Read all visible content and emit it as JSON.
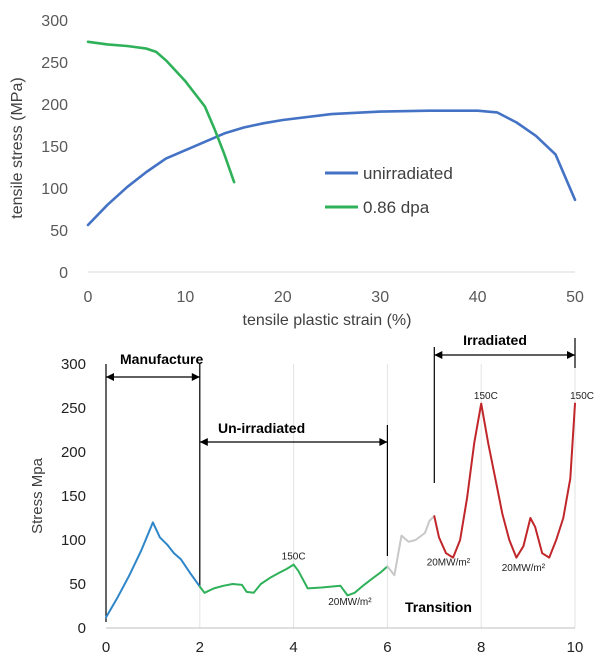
{
  "chart_data": [
    {
      "type": "line",
      "xlabel": "tensile plastic strain (%)",
      "ylabel": "tensile stress (MPa)",
      "xlim": [
        0,
        50
      ],
      "ylim": [
        0,
        300
      ],
      "x_ticks": [
        0,
        10,
        20,
        30,
        40,
        50
      ],
      "y_ticks": [
        0,
        50,
        100,
        150,
        200,
        250,
        300
      ],
      "grid": false,
      "legend_position": "center-right",
      "series": [
        {
          "name": "unirradiated",
          "color": "#4472c4",
          "points": [
            [
              0,
              56
            ],
            [
              2,
              80
            ],
            [
              4,
              101
            ],
            [
              6,
              119
            ],
            [
              8,
              135
            ],
            [
              10,
              145
            ],
            [
              12,
              155
            ],
            [
              14,
              165
            ],
            [
              16,
              172
            ],
            [
              18,
              177
            ],
            [
              20,
              181
            ],
            [
              25,
              188
            ],
            [
              30,
              191
            ],
            [
              35,
              192
            ],
            [
              40,
              192
            ],
            [
              42,
              190
            ],
            [
              44,
              178
            ],
            [
              46,
              162
            ],
            [
              48,
              140
            ],
            [
              50,
              86
            ]
          ]
        },
        {
          "name": "0.86 dpa",
          "color": "#2fb15a",
          "points": [
            [
              0,
              274
            ],
            [
              2,
              271
            ],
            [
              4,
              269
            ],
            [
              6,
              266
            ],
            [
              7,
              262
            ],
            [
              8,
              252
            ],
            [
              10,
              227
            ],
            [
              12,
              197
            ],
            [
              13,
              170
            ],
            [
              14,
              140
            ],
            [
              15,
              107
            ]
          ]
        }
      ]
    },
    {
      "type": "line",
      "xlabel": "",
      "ylabel": "Stress Mpa",
      "xlim": [
        0,
        10
      ],
      "ylim": [
        0,
        300
      ],
      "x_ticks": [
        0,
        2,
        4,
        6,
        8,
        10
      ],
      "y_ticks": [
        0,
        50,
        100,
        150,
        200,
        250,
        300
      ],
      "grid": true,
      "phases": [
        {
          "label": "Manufacture",
          "x_range": [
            0,
            2
          ]
        },
        {
          "label": "Un-irradiated",
          "x_range": [
            2,
            6
          ]
        },
        {
          "label": "Transition",
          "x_range": [
            6,
            7
          ]
        },
        {
          "label": "Irradiated",
          "x_range": [
            7,
            10
          ]
        }
      ],
      "annotations": [
        {
          "text": "150C",
          "x": 4,
          "y": 78
        },
        {
          "text": "20MW/m²",
          "x": 5.2,
          "y": 26
        },
        {
          "text": "20MW/m²",
          "x": 7.3,
          "y": 71
        },
        {
          "text": "150C",
          "x": 8.1,
          "y": 260
        },
        {
          "text": "20MW/m²",
          "x": 8.9,
          "y": 65
        },
        {
          "text": "150C",
          "x": 10.15,
          "y": 260
        }
      ],
      "series": [
        {
          "name": "manufacture",
          "color": "#2e86c8",
          "points": [
            [
              0,
              12
            ],
            [
              0.25,
              35
            ],
            [
              0.5,
              60
            ],
            [
              0.75,
              88
            ],
            [
              1.0,
              120
            ],
            [
              1.15,
              103
            ],
            [
              1.3,
              95
            ],
            [
              1.45,
              85
            ],
            [
              1.6,
              78
            ],
            [
              1.8,
              62
            ],
            [
              2.0,
              47
            ]
          ]
        },
        {
          "name": "un-irradiated",
          "color": "#2fb15a",
          "points": [
            [
              2.0,
              47
            ],
            [
              2.1,
              40
            ],
            [
              2.3,
              45
            ],
            [
              2.5,
              48
            ],
            [
              2.7,
              50
            ],
            [
              2.9,
              49
            ],
            [
              3.0,
              41
            ],
            [
              3.15,
              40
            ],
            [
              3.3,
              50
            ],
            [
              3.5,
              57
            ],
            [
              3.7,
              63
            ],
            [
              3.85,
              67
            ],
            [
              4.0,
              72
            ],
            [
              4.1,
              65
            ],
            [
              4.3,
              45
            ],
            [
              4.6,
              46
            ],
            [
              4.8,
              47
            ],
            [
              5.0,
              48
            ],
            [
              5.15,
              37
            ],
            [
              5.3,
              40
            ],
            [
              5.5,
              49
            ],
            [
              5.7,
              57
            ],
            [
              5.85,
              63
            ],
            [
              6.0,
              70
            ]
          ]
        },
        {
          "name": "transition",
          "color": "#c8c8c8",
          "points": [
            [
              6.0,
              70
            ],
            [
              6.15,
              60
            ],
            [
              6.3,
              105
            ],
            [
              6.45,
              98
            ],
            [
              6.6,
              100
            ],
            [
              6.8,
              108
            ],
            [
              6.9,
              122
            ],
            [
              7.0,
              127
            ]
          ]
        },
        {
          "name": "irradiated",
          "color": "#c0262a",
          "points": [
            [
              7.0,
              127
            ],
            [
              7.1,
              103
            ],
            [
              7.25,
              85
            ],
            [
              7.4,
              80
            ],
            [
              7.55,
              100
            ],
            [
              7.7,
              148
            ],
            [
              7.85,
              210
            ],
            [
              8.0,
              255
            ],
            [
              8.15,
              210
            ],
            [
              8.3,
              170
            ],
            [
              8.45,
              130
            ],
            [
              8.6,
              100
            ],
            [
              8.75,
              80
            ],
            [
              8.9,
              93
            ],
            [
              9.05,
              125
            ],
            [
              9.15,
              115
            ],
            [
              9.3,
              85
            ],
            [
              9.45,
              80
            ],
            [
              9.6,
              100
            ],
            [
              9.75,
              125
            ],
            [
              9.9,
              170
            ],
            [
              10.0,
              255
            ]
          ]
        }
      ]
    }
  ]
}
